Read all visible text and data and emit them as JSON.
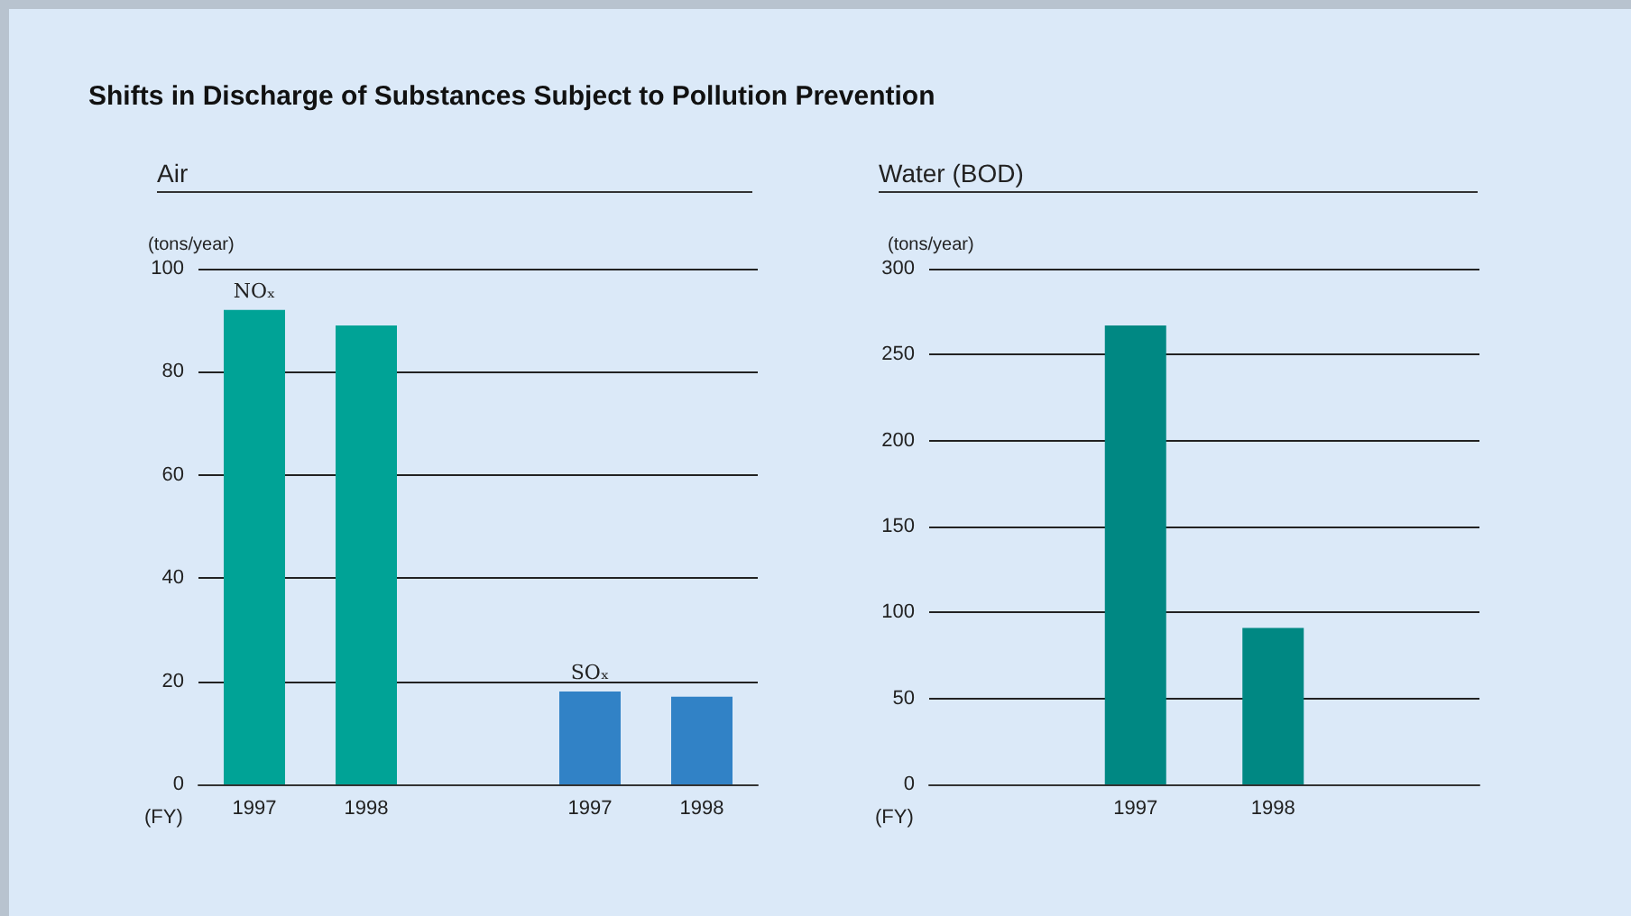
{
  "chart_data": [
    {
      "type": "bar",
      "title": "Shifts in Discharge of Substances Subject to Pollution Prevention",
      "subtitle": "Air",
      "xlabel": "(FY)",
      "ylabel": "(tons/year)",
      "categories": [
        "1997",
        "1998",
        null,
        "1997",
        "1998"
      ],
      "series": [
        {
          "name": "NOₓ",
          "color": "#00a396",
          "values": [
            92,
            89,
            null,
            null,
            null
          ]
        },
        {
          "name": "SOₓ",
          "color": "#3182c6",
          "values": [
            null,
            null,
            null,
            18,
            17
          ]
        }
      ],
      "ylim": [
        0,
        100
      ],
      "yticks": [
        0,
        20,
        40,
        60,
        80,
        100
      ],
      "grid": "y",
      "legend": false
    },
    {
      "type": "bar",
      "title": "Water (BOD)",
      "xlabel": "(FY)",
      "ylabel": "(tons/year)",
      "categories": [
        null,
        "1997",
        "1998",
        null
      ],
      "series": [
        {
          "color": "#008883",
          "values": [
            null,
            267,
            91,
            null
          ]
        }
      ],
      "ylim": [
        0,
        300
      ],
      "yticks": [
        0,
        50,
        100,
        150,
        200,
        250,
        300
      ],
      "grid": "y",
      "legend": false
    }
  ]
}
